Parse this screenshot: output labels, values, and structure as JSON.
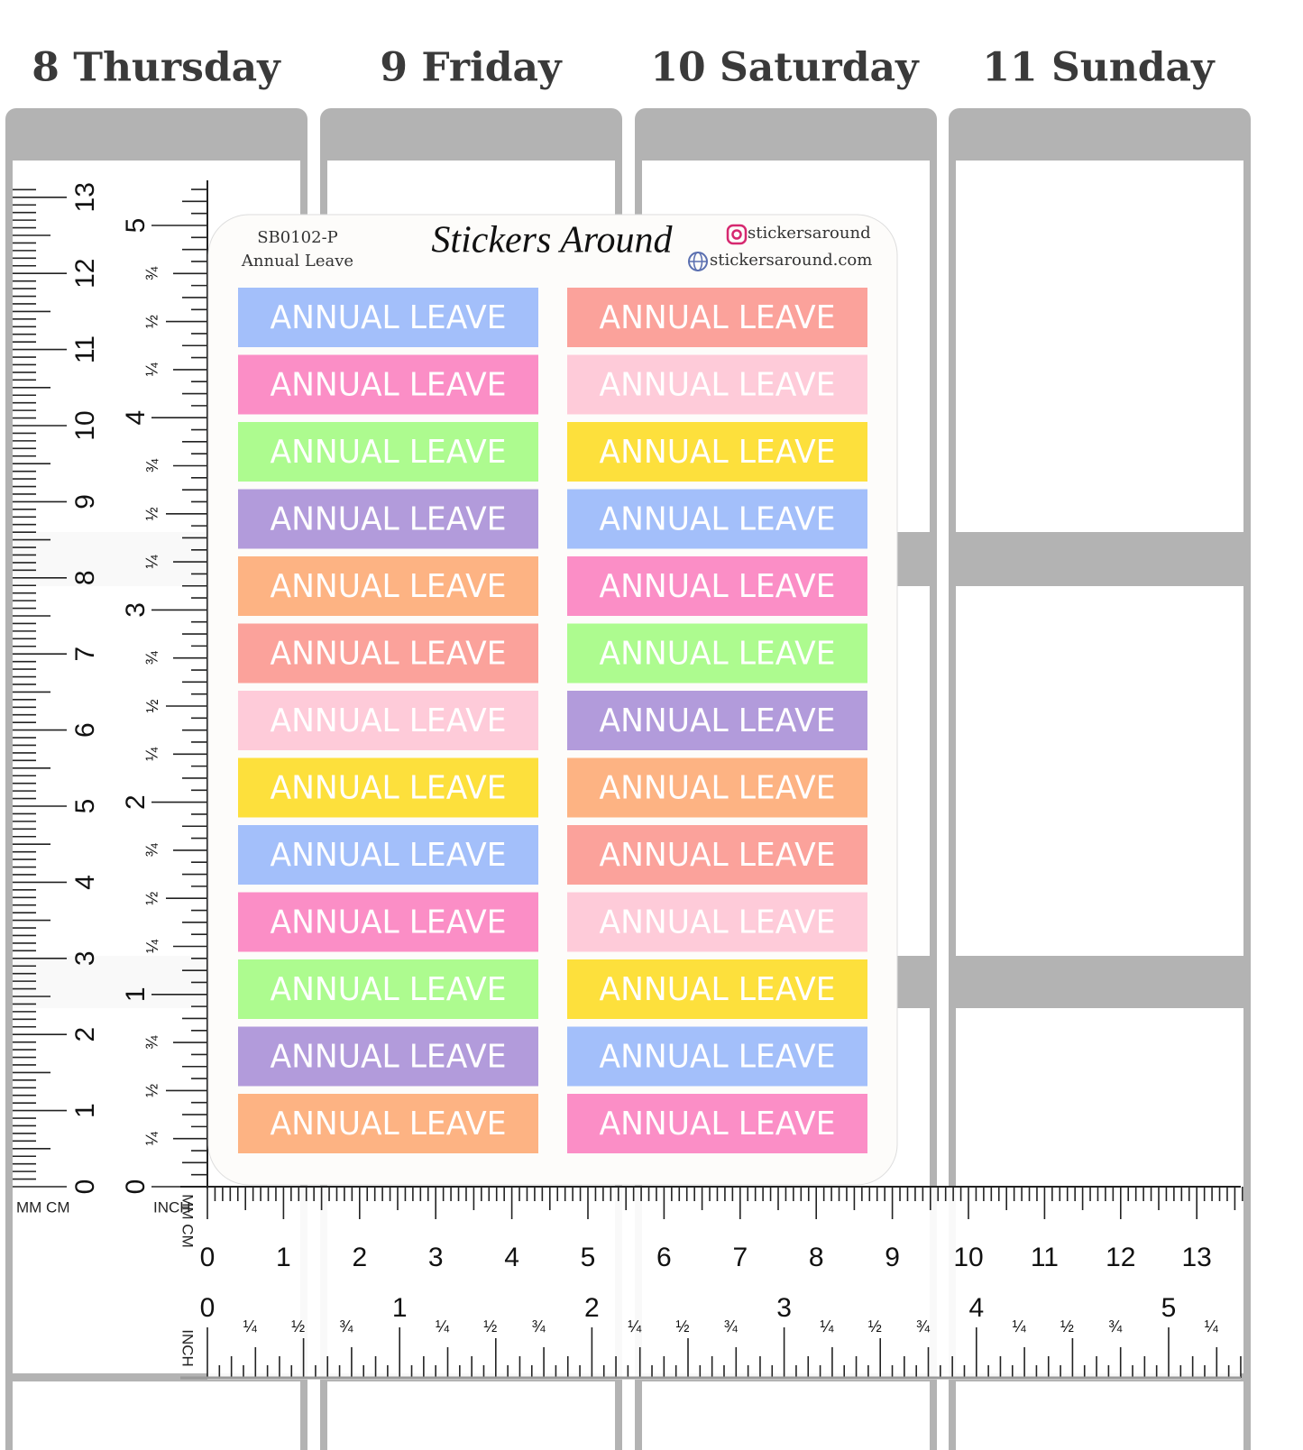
{
  "days": [
    "8 Thursday",
    "9 Friday",
    "10 Saturday",
    "11 Sunday"
  ],
  "sheet": {
    "code": "SB0102-P",
    "subtitle": "Annual Leave",
    "brand": "Stickers Around",
    "instagram": "stickersaround",
    "website": "stickersaround.com",
    "columns": [
      [
        {
          "text": "ANNUAL LEAVE",
          "color": "#a3bffa"
        },
        {
          "text": "ANNUAL LEAVE",
          "color": "#fb8ec6"
        },
        {
          "text": "ANNUAL LEAVE",
          "color": "#adfb8f"
        },
        {
          "text": "ANNUAL LEAVE",
          "color": "#b29bdb"
        },
        {
          "text": "ANNUAL LEAVE",
          "color": "#fdb383"
        },
        {
          "text": "ANNUAL LEAVE",
          "color": "#fba29b"
        },
        {
          "text": "ANNUAL LEAVE",
          "color": "#fecbd9"
        },
        {
          "text": "ANNUAL LEAVE",
          "color": "#fde03c"
        },
        {
          "text": "ANNUAL LEAVE",
          "color": "#a3bffa"
        },
        {
          "text": "ANNUAL LEAVE",
          "color": "#fb8ec6"
        },
        {
          "text": "ANNUAL LEAVE",
          "color": "#adfb8f"
        },
        {
          "text": "ANNUAL LEAVE",
          "color": "#b29bdb"
        },
        {
          "text": "ANNUAL LEAVE",
          "color": "#fdb383"
        }
      ],
      [
        {
          "text": "ANNUAL LEAVE",
          "color": "#fba29b"
        },
        {
          "text": "ANNUAL LEAVE",
          "color": "#fecbd9"
        },
        {
          "text": "ANNUAL LEAVE",
          "color": "#fde03c"
        },
        {
          "text": "ANNUAL LEAVE",
          "color": "#a3bffa"
        },
        {
          "text": "ANNUAL LEAVE",
          "color": "#fb8ec6"
        },
        {
          "text": "ANNUAL LEAVE",
          "color": "#adfb8f"
        },
        {
          "text": "ANNUAL LEAVE",
          "color": "#b29bdb"
        },
        {
          "text": "ANNUAL LEAVE",
          "color": "#fdb383"
        },
        {
          "text": "ANNUAL LEAVE",
          "color": "#fba29b"
        },
        {
          "text": "ANNUAL LEAVE",
          "color": "#fecbd9"
        },
        {
          "text": "ANNUAL LEAVE",
          "color": "#fde03c"
        },
        {
          "text": "ANNUAL LEAVE",
          "color": "#a3bffa"
        },
        {
          "text": "ANNUAL LEAVE",
          "color": "#fb8ec6"
        }
      ]
    ]
  },
  "ruler_left": {
    "cm_label": "MM CM",
    "inch_label": "INCH",
    "cm": [
      "0",
      "1",
      "2",
      "3",
      "4",
      "5",
      "6",
      "7",
      "8",
      "9",
      "10",
      "11",
      "12",
      "13"
    ],
    "inch": [
      "0",
      "¼",
      "½",
      "¾",
      "1",
      "¼",
      "½",
      "¾",
      "2",
      "¼",
      "½",
      "¾",
      "3",
      "¼",
      "½",
      "¾",
      "4",
      "¼",
      "½",
      "¾",
      "5"
    ]
  },
  "ruler_bottom": {
    "cm_label": "MM CM",
    "inch_label": "INCH",
    "cm": [
      "0",
      "1",
      "2",
      "3",
      "4",
      "5",
      "6",
      "7",
      "8",
      "9",
      "10",
      "11",
      "12",
      "13"
    ],
    "inch": [
      "0",
      "¼",
      "½",
      "¾",
      "1",
      "¼",
      "½",
      "¾",
      "2",
      "¼",
      "½",
      "¾",
      "3",
      "¼",
      "½",
      "¾",
      "4",
      "¼",
      "½",
      "¾",
      "5",
      "¼"
    ]
  }
}
